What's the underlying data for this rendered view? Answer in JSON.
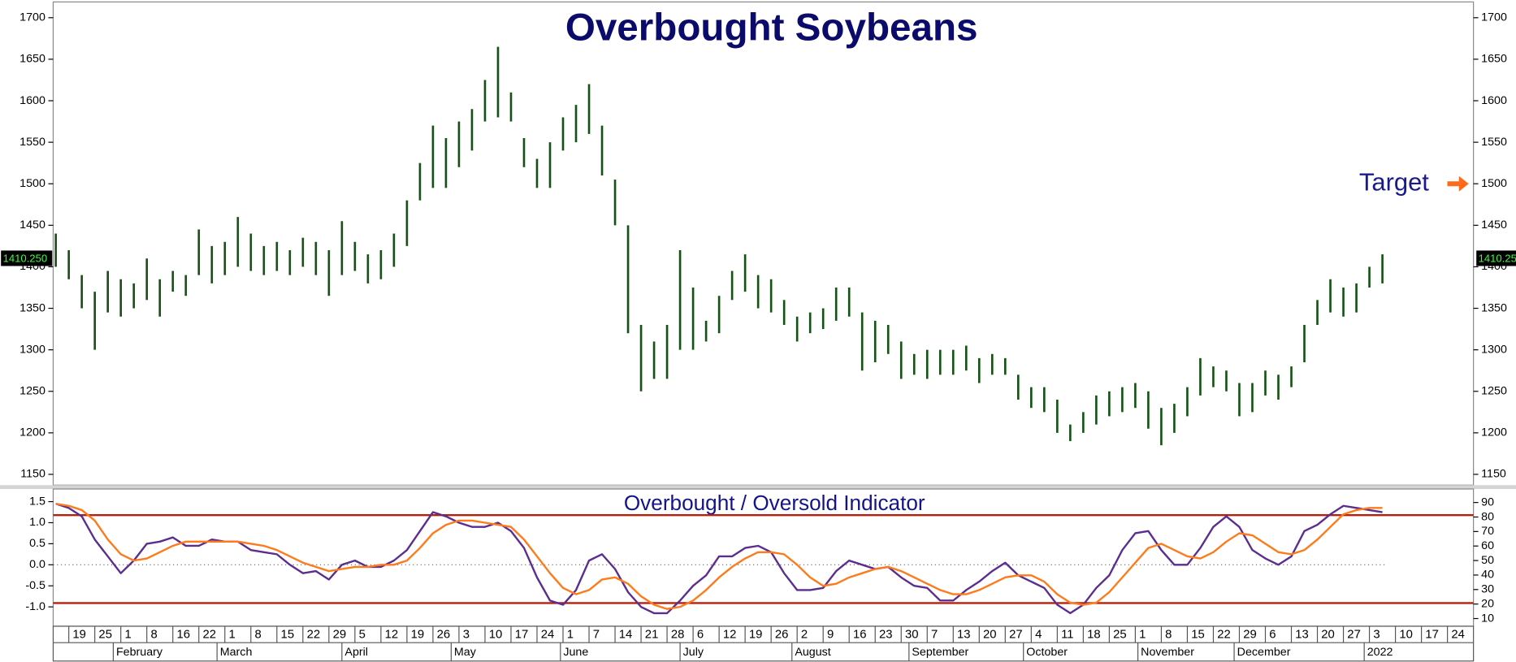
{
  "chart_data": [
    {
      "type": "hilo",
      "title": "Overbought Soybeans",
      "color": "#145214",
      "x": [
        -0.5,
        0,
        0.5,
        1,
        1.5,
        2,
        2.5,
        3,
        3.5,
        4,
        4.5,
        5,
        5.5,
        6,
        6.5,
        7,
        7.5,
        8,
        8.5,
        9,
        9.5,
        10,
        10.5,
        11,
        11.5,
        12,
        12.5,
        13,
        13.5,
        14,
        14.5,
        15,
        15.5,
        16,
        16.5,
        17,
        17.5,
        18,
        18.5,
        19,
        19.5,
        20,
        20.5,
        21,
        21.5,
        22,
        22.5,
        23,
        23.5,
        24,
        24.5,
        25,
        25.5,
        26,
        26.5,
        27,
        27.5,
        28,
        28.5,
        29,
        29.5,
        30,
        30.5,
        31,
        31.5,
        32,
        32.5,
        33,
        33.5,
        34,
        34.5,
        35,
        35.5,
        36,
        36.5,
        37,
        37.5,
        38,
        38.5,
        39,
        39.5,
        40,
        40.5,
        41,
        41.5,
        42,
        42.5,
        43,
        43.5,
        44,
        44.5,
        45,
        45.5,
        46,
        46.5,
        47,
        47.5,
        48,
        48.5,
        49,
        49.5,
        50,
        50.5
      ],
      "high": [
        1440,
        1420,
        1390,
        1370,
        1395,
        1385,
        1380,
        1410,
        1385,
        1395,
        1390,
        1445,
        1425,
        1430,
        1460,
        1440,
        1425,
        1430,
        1420,
        1435,
        1430,
        1420,
        1455,
        1430,
        1415,
        1420,
        1440,
        1480,
        1525,
        1570,
        1555,
        1575,
        1590,
        1625,
        1665,
        1610,
        1555,
        1530,
        1550,
        1580,
        1595,
        1620,
        1570,
        1505,
        1450,
        1330,
        1310,
        1330,
        1420,
        1375,
        1335,
        1365,
        1395,
        1415,
        1390,
        1385,
        1360,
        1340,
        1345,
        1350,
        1375,
        1375,
        1345,
        1335,
        1330,
        1310,
        1295,
        1300,
        1300,
        1300,
        1305,
        1290,
        1295,
        1290,
        1270,
        1255,
        1255,
        1240,
        1210,
        1225,
        1245,
        1250,
        1255,
        1260,
        1250,
        1230,
        1235,
        1255,
        1290,
        1280,
        1275,
        1260,
        1260,
        1275,
        1270,
        1280,
        1330,
        1360,
        1385,
        1375,
        1380,
        1400,
        1415
      ],
      "low": [
        1400,
        1385,
        1350,
        1300,
        1345,
        1340,
        1350,
        1360,
        1340,
        1370,
        1365,
        1390,
        1380,
        1390,
        1400,
        1395,
        1390,
        1395,
        1390,
        1400,
        1390,
        1365,
        1390,
        1395,
        1380,
        1385,
        1400,
        1425,
        1480,
        1495,
        1495,
        1520,
        1540,
        1575,
        1580,
        1575,
        1520,
        1495,
        1495,
        1540,
        1550,
        1560,
        1510,
        1450,
        1320,
        1250,
        1265,
        1265,
        1300,
        1300,
        1310,
        1320,
        1360,
        1370,
        1350,
        1345,
        1330,
        1310,
        1320,
        1325,
        1335,
        1340,
        1275,
        1285,
        1295,
        1265,
        1270,
        1265,
        1270,
        1270,
        1275,
        1260,
        1270,
        1270,
        1240,
        1230,
        1225,
        1200,
        1190,
        1200,
        1210,
        1220,
        1225,
        1230,
        1205,
        1185,
        1200,
        1220,
        1245,
        1255,
        1250,
        1220,
        1225,
        1245,
        1240,
        1255,
        1285,
        1330,
        1345,
        1340,
        1345,
        1375,
        1380
      ],
      "xlim": [
        -0.6,
        54
      ],
      "ylim": [
        1137,
        1719
      ],
      "yticks": [
        1150,
        1200,
        1250,
        1300,
        1350,
        1400,
        1450,
        1500,
        1550,
        1600,
        1650,
        1700
      ],
      "annotations": [
        {
          "text": "Target",
          "value": 1500
        }
      ],
      "last_price": {
        "value": 1410.25,
        "label": "1410.250"
      }
    },
    {
      "type": "line",
      "title": "Overbought / Oversold Indicator",
      "x": [
        -0.5,
        0,
        0.5,
        1,
        1.5,
        2,
        2.5,
        3,
        3.5,
        4,
        4.5,
        5,
        5.5,
        6,
        6.5,
        7,
        7.5,
        8,
        8.5,
        9,
        9.5,
        10,
        10.5,
        11,
        11.5,
        12,
        12.5,
        13,
        13.5,
        14,
        14.5,
        15,
        15.5,
        16,
        16.5,
        17,
        17.5,
        18,
        18.5,
        19,
        19.5,
        20,
        20.5,
        21,
        21.5,
        22,
        22.5,
        23,
        23.5,
        24,
        24.5,
        25,
        25.5,
        26,
        26.5,
        27,
        27.5,
        28,
        28.5,
        29,
        29.5,
        30,
        30.5,
        31,
        31.5,
        32,
        32.5,
        33,
        33.5,
        34,
        34.5,
        35,
        35.5,
        36,
        36.5,
        37,
        37.5,
        38,
        38.5,
        39,
        39.5,
        40,
        40.5,
        41,
        41.5,
        42,
        42.5,
        43,
        43.5,
        44,
        44.5,
        45,
        45.5,
        46,
        46.5,
        47,
        47.5,
        48,
        48.5,
        49,
        49.5,
        50,
        50.5
      ],
      "series": [
        {
          "color": "#5a2d8f",
          "values": [
            1.45,
            1.35,
            1.15,
            0.6,
            0.2,
            -0.2,
            0.1,
            0.5,
            0.55,
            0.65,
            0.45,
            0.45,
            0.6,
            0.55,
            0.55,
            0.35,
            0.3,
            0.25,
            0.0,
            -0.2,
            -0.15,
            -0.35,
            0.0,
            0.1,
            -0.05,
            -0.05,
            0.1,
            0.35,
            0.8,
            1.25,
            1.15,
            1.0,
            0.9,
            0.9,
            1.0,
            0.8,
            0.4,
            -0.3,
            -0.85,
            -0.95,
            -0.6,
            0.1,
            0.25,
            -0.1,
            -0.65,
            -1.0,
            -1.15,
            -1.15,
            -0.85,
            -0.5,
            -0.25,
            0.2,
            0.2,
            0.4,
            0.45,
            0.3,
            -0.2,
            -0.6,
            -0.6,
            -0.55,
            -0.15,
            0.1,
            0.0,
            -0.1,
            -0.05,
            -0.3,
            -0.5,
            -0.55,
            -0.85,
            -0.85,
            -0.6,
            -0.4,
            -0.15,
            0.05,
            -0.25,
            -0.4,
            -0.55,
            -0.95,
            -1.15,
            -0.95,
            -0.55,
            -0.25,
            0.35,
            0.75,
            0.8,
            0.35,
            0.0,
            0.0,
            0.4,
            0.9,
            1.15,
            0.9,
            0.35,
            0.15,
            0.0,
            0.2,
            0.8,
            0.95,
            1.2,
            1.4,
            1.35,
            1.3,
            1.25
          ]
        },
        {
          "color": "#ff7a1a",
          "values": [
            1.45,
            1.4,
            1.3,
            1.05,
            0.6,
            0.25,
            0.1,
            0.15,
            0.3,
            0.45,
            0.55,
            0.55,
            0.55,
            0.55,
            0.55,
            0.5,
            0.45,
            0.35,
            0.2,
            0.05,
            -0.05,
            -0.15,
            -0.1,
            -0.05,
            -0.05,
            0.0,
            0.0,
            0.1,
            0.4,
            0.75,
            0.95,
            1.05,
            1.05,
            1.0,
            0.95,
            0.9,
            0.6,
            0.2,
            -0.2,
            -0.55,
            -0.7,
            -0.6,
            -0.35,
            -0.3,
            -0.45,
            -0.75,
            -0.95,
            -1.05,
            -1.0,
            -0.85,
            -0.6,
            -0.3,
            -0.05,
            0.15,
            0.3,
            0.3,
            0.25,
            0.0,
            -0.3,
            -0.5,
            -0.45,
            -0.3,
            -0.2,
            -0.1,
            -0.05,
            -0.15,
            -0.3,
            -0.45,
            -0.6,
            -0.7,
            -0.7,
            -0.6,
            -0.45,
            -0.3,
            -0.25,
            -0.25,
            -0.4,
            -0.7,
            -0.9,
            -0.95,
            -0.9,
            -0.65,
            -0.3,
            0.05,
            0.4,
            0.5,
            0.35,
            0.2,
            0.15,
            0.3,
            0.55,
            0.75,
            0.7,
            0.5,
            0.3,
            0.25,
            0.35,
            0.6,
            0.9,
            1.2,
            1.3,
            1.35,
            1.35
          ]
        }
      ],
      "xlim": [
        -0.6,
        54
      ],
      "ylim": [
        -1.46,
        1.8
      ],
      "yticks": [
        {
          "value": -1,
          "label": "-1.0"
        },
        -0.5,
        {
          "value": 0,
          "label": "0.0"
        },
        0.5,
        {
          "value": 1,
          "label": "1.0"
        },
        1.5
      ],
      "y2lim": [
        4.7,
        99.3
      ],
      "y2ticks": [
        10,
        20,
        30,
        40,
        50,
        60,
        70,
        80,
        90
      ],
      "levels": [
        1.18,
        -0.91
      ],
      "level_color": "#b5200f",
      "xticks": [
        {
          "value": 0,
          "label": "19"
        },
        {
          "value": 1,
          "label": "25"
        },
        {
          "value": 2,
          "label": "1"
        },
        {
          "value": 3,
          "label": "8"
        },
        {
          "value": 4,
          "label": "16"
        },
        {
          "value": 5,
          "label": "22"
        },
        {
          "value": 6,
          "label": "1"
        },
        {
          "value": 7,
          "label": "8"
        },
        {
          "value": 8,
          "label": "15"
        },
        {
          "value": 9,
          "label": "22"
        },
        {
          "value": 10,
          "label": "29"
        },
        {
          "value": 11,
          "label": "5"
        },
        {
          "value": 12,
          "label": "12"
        },
        {
          "value": 13,
          "label": "19"
        },
        {
          "value": 14,
          "label": "26"
        },
        {
          "value": 15,
          "label": "3"
        },
        {
          "value": 16,
          "label": "10"
        },
        {
          "value": 17,
          "label": "17"
        },
        {
          "value": 18,
          "label": "24"
        },
        {
          "value": 19,
          "label": "1"
        },
        {
          "value": 20,
          "label": "7"
        },
        {
          "value": 21,
          "label": "14"
        },
        {
          "value": 22,
          "label": "21"
        },
        {
          "value": 23,
          "label": "28"
        },
        {
          "value": 24,
          "label": "6"
        },
        {
          "value": 25,
          "label": "12"
        },
        {
          "value": 26,
          "label": "19"
        },
        {
          "value": 27,
          "label": "26"
        },
        {
          "value": 28,
          "label": "2"
        },
        {
          "value": 29,
          "label": "9"
        },
        {
          "value": 30,
          "label": "16"
        },
        {
          "value": 31,
          "label": "23"
        },
        {
          "value": 32,
          "label": "30"
        },
        {
          "value": 33,
          "label": "7"
        },
        {
          "value": 34,
          "label": "13"
        },
        {
          "value": 35,
          "label": "20"
        },
        {
          "value": 36,
          "label": "27"
        },
        {
          "value": 37,
          "label": "4"
        },
        {
          "value": 38,
          "label": "11"
        },
        {
          "value": 39,
          "label": "18"
        },
        {
          "value": 40,
          "label": "25"
        },
        {
          "value": 41,
          "label": "1"
        },
        {
          "value": 42,
          "label": "8"
        },
        {
          "value": 43,
          "label": "15"
        },
        {
          "value": 44,
          "label": "22"
        },
        {
          "value": 45,
          "label": "29"
        },
        {
          "value": 46,
          "label": "6"
        },
        {
          "value": 47,
          "label": "13"
        },
        {
          "value": 48,
          "label": "20"
        },
        {
          "value": 49,
          "label": "27"
        },
        {
          "value": 50,
          "label": "3"
        },
        {
          "value": 51,
          "label": "10"
        },
        {
          "value": 52,
          "label": "17"
        },
        {
          "value": 53,
          "label": "24"
        }
      ],
      "month_ticks": [
        {
          "value": 1.71,
          "label": "February"
        },
        {
          "value": 5.7,
          "label": "March"
        },
        {
          "value": 10.5,
          "label": "April"
        },
        {
          "value": 14.7,
          "label": "May"
        },
        {
          "value": 18.9,
          "label": "June"
        },
        {
          "value": 23.5,
          "label": "July"
        },
        {
          "value": 27.8,
          "label": "August"
        },
        {
          "value": 32.3,
          "label": "September"
        },
        {
          "value": 36.7,
          "label": "October"
        },
        {
          "value": 41.1,
          "label": "November"
        },
        {
          "value": 44.8,
          "label": "December"
        },
        {
          "value": 49.8,
          "label": "2022"
        }
      ]
    }
  ]
}
